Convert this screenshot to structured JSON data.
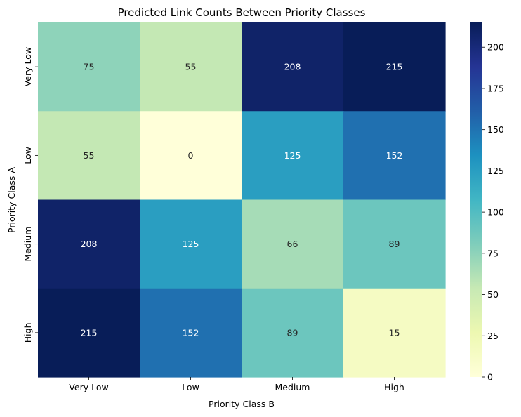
{
  "chart_data": {
    "type": "heatmap",
    "title": "Predicted Link Counts Between Priority Classes",
    "xlabel": "Priority Class B",
    "ylabel": "Priority Class A",
    "x_categories": [
      "Very Low",
      "Low",
      "Medium",
      "High"
    ],
    "y_categories": [
      "Very Low",
      "Low",
      "Medium",
      "High"
    ],
    "values": [
      [
        75,
        55,
        208,
        215
      ],
      [
        55,
        0,
        125,
        152
      ],
      [
        208,
        125,
        66,
        89
      ],
      [
        215,
        152,
        89,
        15
      ]
    ],
    "colorbar": {
      "colormap": "YlGnBu",
      "range": [
        0,
        215
      ],
      "ticks": [
        "0",
        "25",
        "50",
        "75",
        "100",
        "125",
        "150",
        "175",
        "200"
      ]
    }
  }
}
